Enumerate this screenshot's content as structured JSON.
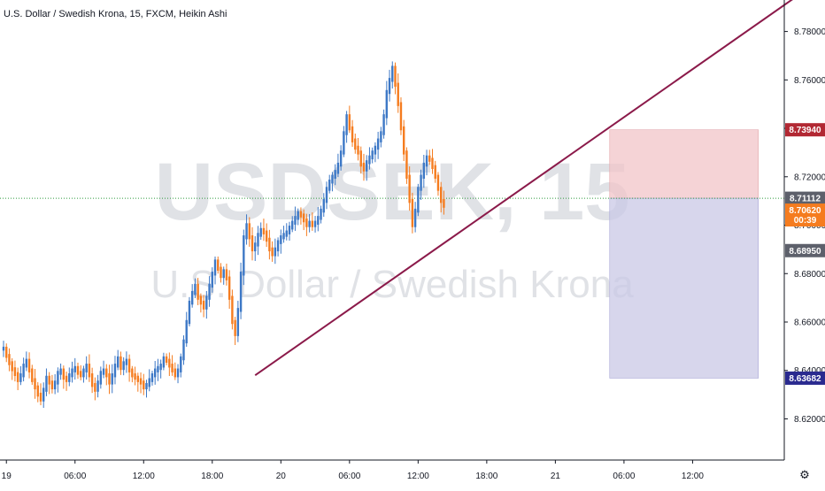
{
  "chart_data": {
    "type": "candlestick",
    "title": "U.S. Dollar / Swedish Krona, 15, FXCM, Heikin Ashi",
    "watermark": {
      "symbol": "USDSEK, 15",
      "name": "U.S. Dollar / Swedish Krona"
    },
    "ylim": [
      8.603,
      8.793
    ],
    "y_ticks": [
      "8.78000",
      "8.76000",
      "8.74000",
      "8.72000",
      "8.70000",
      "8.68000",
      "8.66000",
      "8.64000",
      "8.62000"
    ],
    "x_ticks": [
      {
        "label": "19",
        "t": 1
      },
      {
        "label": "06:00",
        "t": 25
      },
      {
        "label": "12:00",
        "t": 49
      },
      {
        "label": "18:00",
        "t": 73
      },
      {
        "label": "20",
        "t": 97
      },
      {
        "label": "06:00",
        "t": 121
      },
      {
        "label": "12:00",
        "t": 145
      },
      {
        "label": "18:00",
        "t": 169
      },
      {
        "label": "21",
        "t": 193
      },
      {
        "label": "06:00",
        "t": 217
      },
      {
        "label": "12:00",
        "t": 241
      }
    ],
    "series": [
      {
        "values": [
          8.649,
          8.646,
          8.643,
          8.6405,
          8.6385,
          8.636,
          8.638,
          8.642,
          8.644,
          8.64,
          8.636,
          8.633,
          8.63,
          8.628,
          8.632,
          8.637,
          8.635,
          8.633,
          8.635,
          8.639,
          8.64,
          8.637,
          8.636,
          8.638,
          8.64,
          8.641,
          8.639,
          8.638,
          8.64,
          8.642,
          8.638,
          8.634,
          8.632,
          8.635,
          8.639,
          8.64,
          8.638,
          8.635,
          8.638,
          8.642,
          8.645,
          8.641,
          8.643,
          8.644,
          8.64,
          8.638,
          8.637,
          8.636,
          8.635,
          8.633,
          8.634,
          8.636,
          8.638,
          8.64,
          8.641,
          8.642,
          8.645,
          8.644,
          8.642,
          8.64,
          8.638,
          8.64,
          8.645,
          8.652,
          8.66,
          8.668,
          8.672,
          8.675,
          8.67,
          8.668,
          8.666,
          8.67,
          8.675,
          8.68,
          8.685,
          8.682,
          8.679,
          8.681,
          8.678,
          8.67,
          8.66,
          8.655,
          8.665,
          8.68,
          8.695,
          8.7,
          8.695,
          8.69,
          8.692,
          8.696,
          8.698,
          8.697,
          8.694,
          8.69,
          8.688,
          8.69,
          8.693,
          8.695,
          8.696,
          8.697,
          8.699,
          8.701,
          8.703,
          8.705,
          8.704,
          8.702,
          8.7,
          8.701,
          8.7,
          8.701,
          8.703,
          8.706,
          8.71,
          8.715,
          8.718,
          8.72,
          8.722,
          8.725,
          8.73,
          8.738,
          8.745,
          8.74,
          8.735,
          8.732,
          8.73,
          8.725,
          8.723,
          8.726,
          8.728,
          8.73,
          8.732,
          8.735,
          8.738,
          8.745,
          8.755,
          8.76,
          8.765,
          8.758,
          8.75,
          8.74,
          8.73,
          8.72,
          8.71,
          8.7,
          8.706,
          8.715,
          8.72,
          8.725,
          8.728,
          8.727,
          8.724,
          8.72,
          8.715,
          8.71,
          8.708
        ]
      }
    ],
    "trendline": [
      {
        "t": 88,
        "y": 8.638
      },
      {
        "t": 278,
        "y": 8.795
      }
    ],
    "position": {
      "t_start": 212,
      "t_end": 264,
      "stop": 8.7394,
      "entry": 8.71112,
      "target": 8.63682,
      "stop_color": "#f2c4c8",
      "target_color": "#c9c8e6"
    },
    "price_labels": [
      {
        "value": 8.7394,
        "text": "8.73940",
        "color": "#b22833"
      },
      {
        "value": 8.71112,
        "text": "8.71112",
        "color": "#5d606b"
      },
      {
        "value": 8.7062,
        "text": "8.70620",
        "color": "#f57c1f"
      },
      {
        "value": 8.7022,
        "text": "00:39",
        "color": "#f57c1f"
      },
      {
        "value": 8.6895,
        "text": "8.68950",
        "color": "#5d606b"
      },
      {
        "value": 8.63682,
        "text": "8.63682",
        "color": "#2a2a8f"
      }
    ],
    "colors": {
      "up": "#3d78c6",
      "down": "#f57c1f",
      "trendline": "#8b1a4a",
      "entry_line": "#2e9a3f",
      "axis_text": "#131722"
    }
  }
}
